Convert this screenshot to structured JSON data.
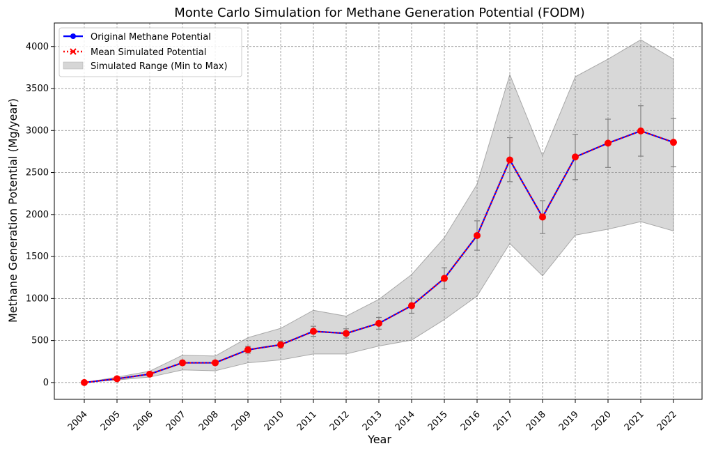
{
  "chart_data": {
    "type": "line",
    "title": "Monte Carlo Simulation for Methane Generation Potential (FODM)",
    "xlabel": "Year",
    "ylabel": "Methane Generation Potential (Mg/year)",
    "x": [
      "2004",
      "2005",
      "2006",
      "2007",
      "2008",
      "2009",
      "2010",
      "2011",
      "2012",
      "2013",
      "2014",
      "2015",
      "2016",
      "2017",
      "2018",
      "2019",
      "2020",
      "2021",
      "2022"
    ],
    "ylim": [
      -200,
      4280
    ],
    "yticks": [
      0,
      500,
      1000,
      1500,
      2000,
      2500,
      3000,
      3500,
      4000
    ],
    "grid": true,
    "legend_position": "top-left",
    "series": [
      {
        "name": "Original Methane Potential",
        "style": "solid line with circle markers",
        "color": "#0000ff",
        "values": [
          0,
          45,
          100,
          235,
          235,
          390,
          450,
          610,
          585,
          705,
          915,
          1240,
          1750,
          2650,
          1970,
          2685,
          2850,
          2995,
          2860
        ]
      },
      {
        "name": "Mean Simulated Potential",
        "style": "dotted line with x markers",
        "color": "#ff0000",
        "values": [
          0,
          45,
          100,
          235,
          235,
          390,
          450,
          610,
          585,
          705,
          915,
          1240,
          1750,
          2650,
          1970,
          2685,
          2850,
          2995,
          2860
        ],
        "error_low": [
          0,
          40,
          90,
          210,
          210,
          350,
          410,
          550,
          530,
          635,
          825,
          1115,
          1575,
          2390,
          1775,
          2415,
          2560,
          2695,
          2570
        ],
        "error_high": [
          0,
          50,
          110,
          260,
          260,
          430,
          490,
          670,
          640,
          775,
          1005,
          1365,
          1925,
          2915,
          2165,
          2955,
          3135,
          3295,
          3145
        ]
      },
      {
        "name": "Simulated Range (Min to Max)",
        "style": "shaded band",
        "color": "#c0c0c0",
        "min": [
          0,
          30,
          65,
          150,
          140,
          235,
          270,
          340,
          340,
          435,
          505,
          750,
          1030,
          1655,
          1270,
          1755,
          1825,
          1915,
          1805
        ],
        "max": [
          0,
          65,
          135,
          325,
          315,
          535,
          645,
          860,
          790,
          990,
          1285,
          1725,
          2360,
          3665,
          2700,
          3640,
          3850,
          4080,
          3850
        ]
      }
    ]
  }
}
